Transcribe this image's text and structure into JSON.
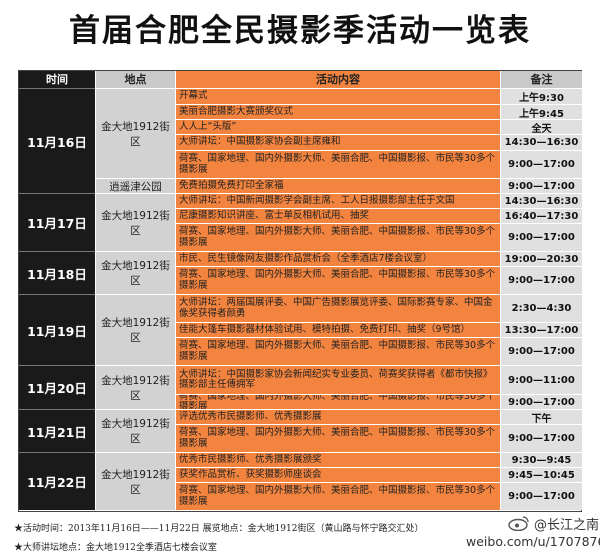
{
  "title": "首届合肥全民摄影季活动一览表",
  "headers": {
    "time": "时间",
    "place": "地点",
    "activity": "活动内容",
    "note": "备注"
  },
  "groups": [
    {
      "date": "11月16日",
      "rows": [
        {
          "place": "金大地1912街区",
          "act": "开幕式",
          "note": "上午9:30"
        },
        {
          "place": "",
          "act": "美丽合肥摄影大赛颁奖仪式",
          "note": "上午9:45"
        },
        {
          "place": "",
          "act": "人人上“头版”",
          "note": "全天"
        },
        {
          "place": "",
          "act": "大师讲坛：中国摄影家协会副主席雍和",
          "note": "14:30—16:30"
        },
        {
          "place": "",
          "act": "荷赛、国家地理、国内外摄影大师、美丽合肥、中国摄影报、市民等30多个摄影展",
          "note": "9:00—17:00"
        },
        {
          "place": "逍遥津公园",
          "act": "免费拍摄免费打印全家福",
          "note": "9:00—17:00"
        }
      ]
    },
    {
      "date": "11月17日",
      "rows": [
        {
          "place": "金大地1912街区",
          "act": "大师讲坛：中国新闻摄影学会副主席、工人日报摄影部主任于文国",
          "note": "14:30—16:30"
        },
        {
          "place": "",
          "act": "尼康摄影知识讲座、富士单反相机试用、抽奖",
          "note": "16:40—17:30"
        },
        {
          "place": "",
          "act": "荷赛、国家地理、国内外摄影大师、美丽合肥、中国摄影报、市民等30多个摄影展",
          "note": "9:00—17:00"
        }
      ]
    },
    {
      "date": "11月18日",
      "rows": [
        {
          "place": "金大地1912街区",
          "act": "市民、民生镜像网友摄影作品赏析会（全季酒店7楼会议室）",
          "note": "19:00—20:30"
        },
        {
          "place": "",
          "act": "荷赛、国家地理、国内外摄影大师、美丽合肥、中国摄影报、市民等30多个摄影展",
          "note": "9:00—17:00"
        }
      ]
    },
    {
      "date": "11月19日",
      "rows": [
        {
          "place": "金大地1912街区",
          "act": "大师讲坛：两届国展评委、中国广告摄影展览评委、国际影赛专家、中国金像奖获得者颜勇",
          "note": "2:30—4:30"
        },
        {
          "place": "",
          "act": "佳能大篷车摄影器材体验试用、模特拍摄、免费打印、抽奖（9号馆）",
          "note": "13:30—17:00"
        },
        {
          "place": "",
          "act": "荷赛、国家地理、国内外摄影大师、美丽合肥、中国摄影报、市民等30多个摄影展",
          "note": "9:00—17:00"
        }
      ]
    },
    {
      "date": "11月20日",
      "rows": [
        {
          "place": "金大地1912街区",
          "act": "大师讲坛：中国摄影家协会新闻纪实专业委员、荷赛奖获得者《都市快报》摄影部主任傅拥军",
          "note": "9:00—11:00"
        },
        {
          "place": "",
          "act": "荷赛、国家地理、国内外摄影大师、美丽合肥、中国摄影报、市民等30多个摄影展",
          "note": "9:00—17:00"
        }
      ]
    },
    {
      "date": "11月21日",
      "rows": [
        {
          "place": "金大地1912街区",
          "act": "评选优秀市民摄影师、优秀摄影展",
          "note": "下午"
        },
        {
          "place": "",
          "act": "荷赛、国家地理、国内外摄影大师、美丽合肥、中国摄影报、市民等30多个摄影展",
          "note": "9:00—17:00"
        }
      ]
    },
    {
      "date": "11月22日",
      "rows": [
        {
          "place": "金大地1912街区",
          "act": "优秀市民摄影师、优秀摄影展颁奖",
          "note": "9:30—9:45"
        },
        {
          "place": "",
          "act": "获奖作品赏析、获奖摄影师座谈会",
          "note": "9:45—10:45"
        },
        {
          "place": "",
          "act": "荷赛、国家地理、国内外摄影大师、美丽合肥、中国摄影报、市民等30多个摄影展",
          "note": "9:00—17:00"
        }
      ]
    }
  ],
  "footer": [
    "★活动时间：2013年11月16日——11月22日   展览地点：金大地1912街区（黄山路与怀宁路交汇处）",
    "★大师讲坛地点：金大地1912全季酒店七楼会议室"
  ],
  "watermark": {
    "handle": "@长江之南",
    "url": "weibo.com/u/1707876683"
  }
}
